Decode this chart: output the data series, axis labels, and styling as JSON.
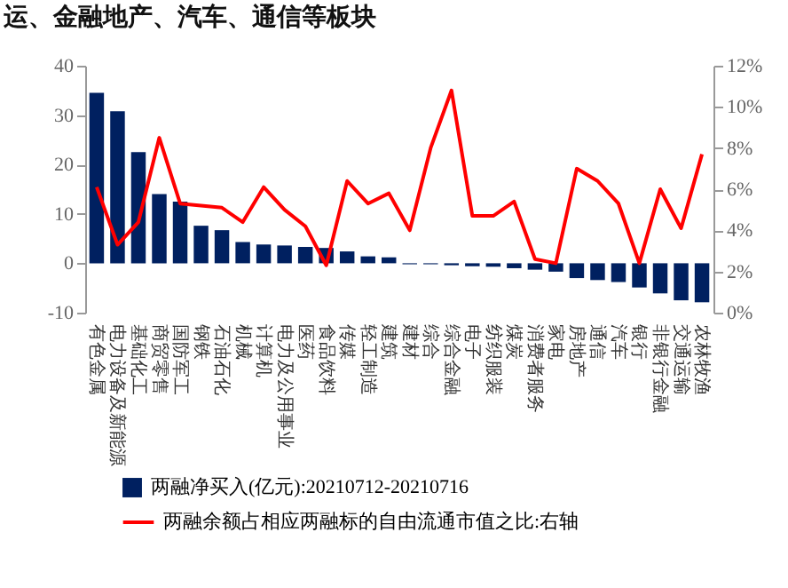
{
  "chart_data": {
    "type": "bar",
    "title": "运、金融地产、汽车、通信等板块",
    "categories": [
      "有色金属",
      "电力设备及新能源",
      "基础化工",
      "商贸零售",
      "国防军工",
      "钢铁",
      "石油石化",
      "机械",
      "计算机",
      "电力及公用事业",
      "医药",
      "食品饮料",
      "传媒",
      "轻工制造",
      "建筑",
      "建材",
      "综合",
      "综合金融",
      "电子",
      "纺织服装",
      "煤炭",
      "消费者服务",
      "家电",
      "房地产",
      "通信",
      "汽车",
      "银行",
      "非银行金融",
      "交通运输",
      "农林牧渔"
    ],
    "series": [
      {
        "name": "两融净买入(亿元):20210712-20210716",
        "color": "#002060",
        "values": [
          34.5,
          30.8,
          22.5,
          14,
          12.5,
          7.6,
          6.7,
          4.3,
          3.8,
          3.6,
          3.3,
          3.1,
          2.4,
          1.4,
          1.2,
          -0.2,
          -0.2,
          -0.4,
          -0.6,
          -0.7,
          -1.0,
          -1.3,
          -1.7,
          -3.0,
          -3.4,
          -3.8,
          -4.9,
          -6.1,
          -7.5,
          -7.9
        ]
      },
      {
        "type": "line",
        "axis": "y2",
        "name": "两融余额占相应两融标的自由流通市值之比:右轴",
        "color": "#ff0000",
        "values": [
          6.1,
          3.3,
          4.4,
          8.5,
          5.3,
          5.2,
          5.1,
          4.4,
          6.1,
          5.0,
          4.2,
          2.3,
          6.4,
          5.3,
          5.8,
          4.0,
          8.0,
          10.8,
          4.7,
          4.7,
          5.4,
          2.6,
          2.4,
          7.0,
          6.4,
          5.3,
          2.4,
          6.0,
          4.1,
          7.7
        ]
      }
    ],
    "ylim": [
      -10,
      40
    ],
    "yticks": [
      -10,
      0,
      10,
      20,
      30,
      40
    ],
    "y2lim": [
      0,
      12
    ],
    "y2ticks": [
      {
        "value": 0,
        "label": "0%"
      },
      {
        "value": 2,
        "label": "2%"
      },
      {
        "value": 4,
        "label": "4%"
      },
      {
        "value": 6,
        "label": "6%"
      },
      {
        "value": 8,
        "label": "8%"
      },
      {
        "value": 10,
        "label": "10%"
      },
      {
        "value": 12,
        "label": "12%"
      }
    ],
    "legend": "bottom"
  }
}
